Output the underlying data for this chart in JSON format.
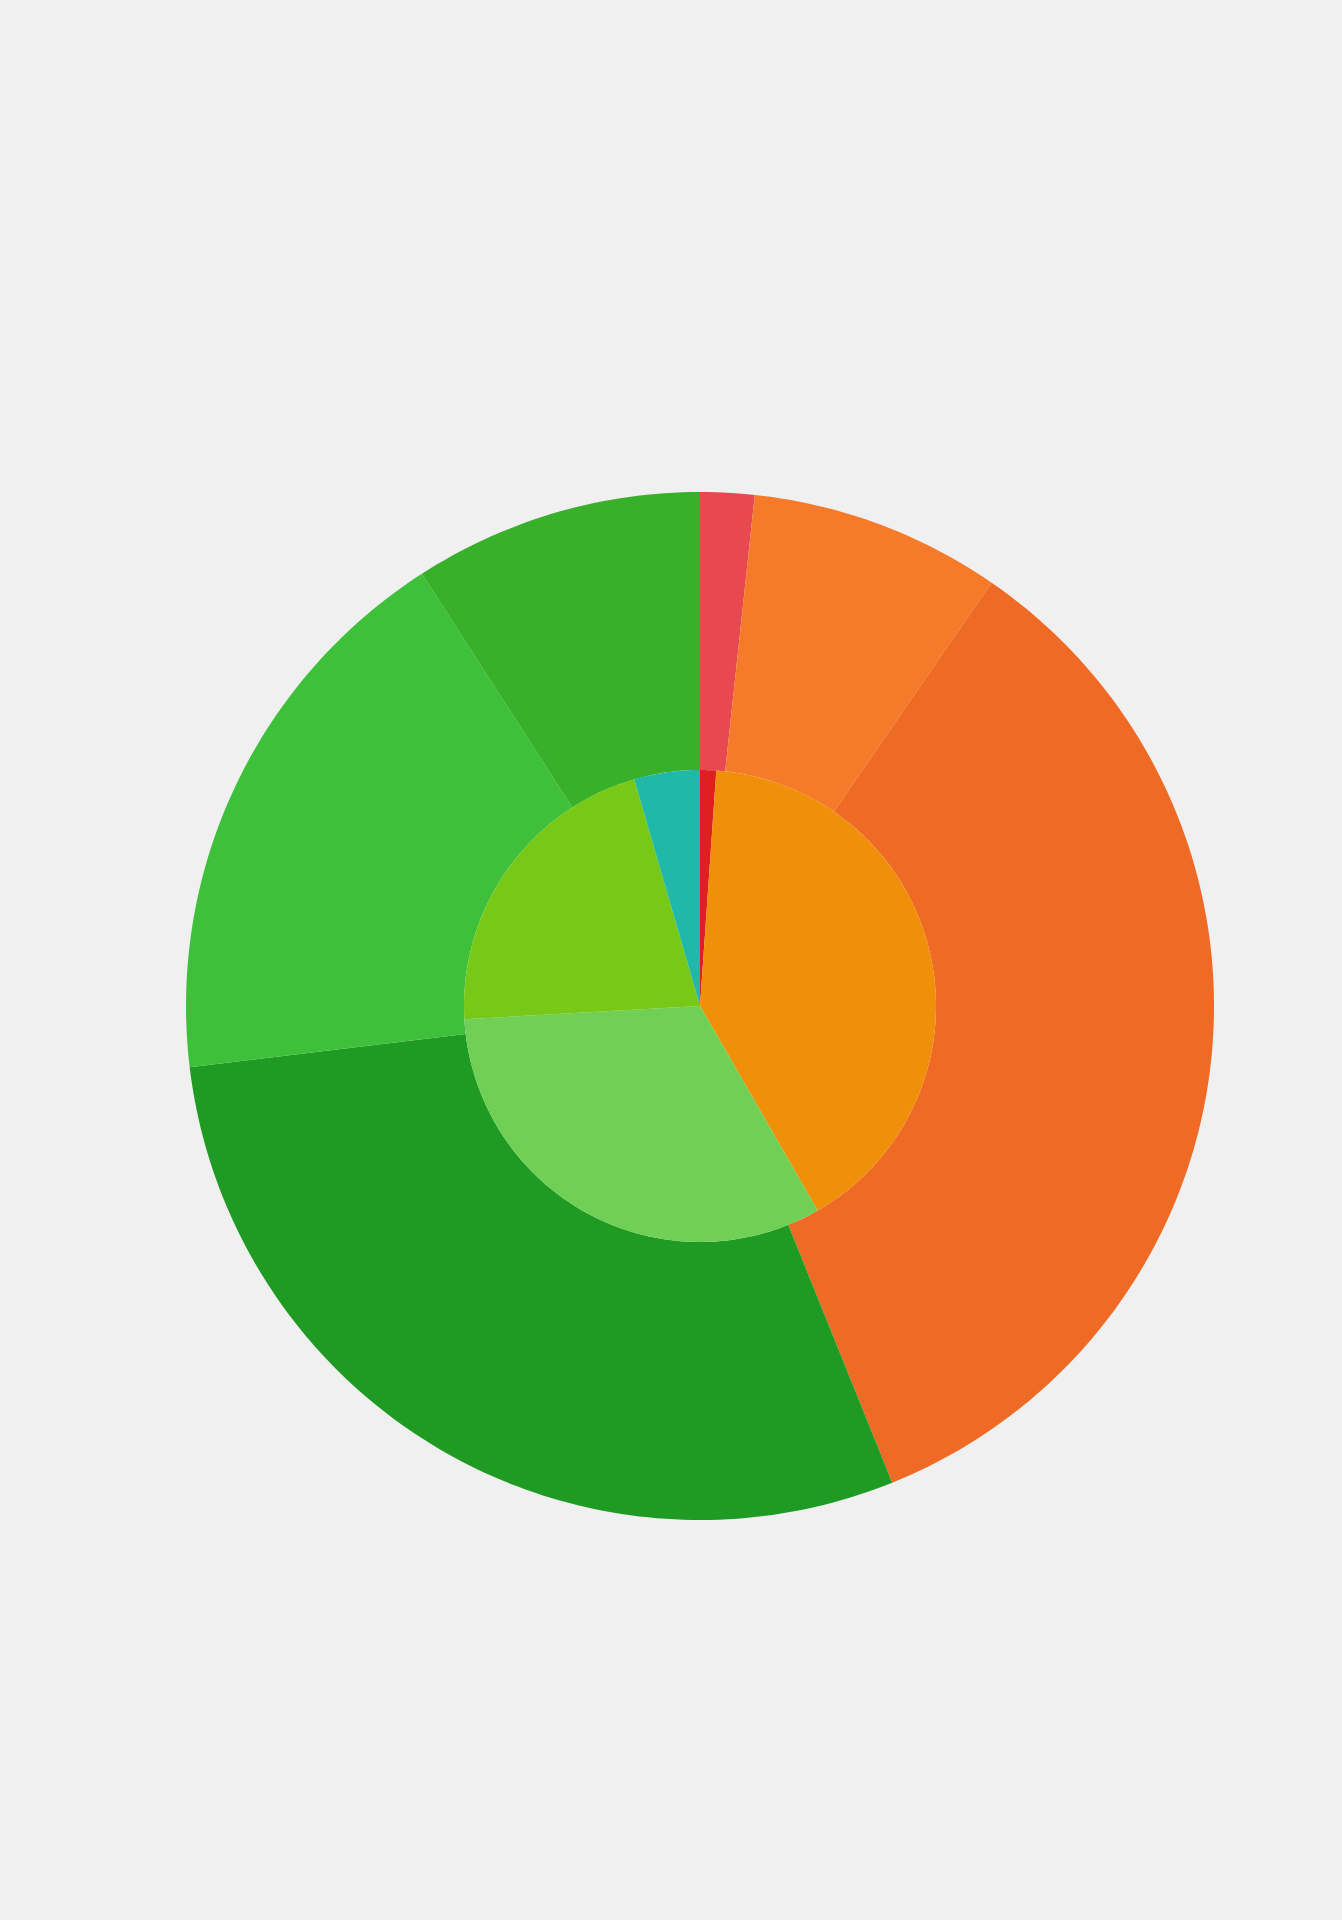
{
  "chart_data": [
    {
      "type": "donut",
      "categories": [
        null,
        null,
        null,
        null,
        null,
        null
      ],
      "values": [
        1.7,
        7.9,
        34.3,
        29.2,
        17.8,
        9.1
      ],
      "colors": [
        "#e84850",
        "#f57a2a",
        "#ef6a25",
        "#1f9a22",
        "#3fc03a",
        "#38b02a"
      ]
    },
    {
      "type": "pie",
      "categories": [
        null,
        null,
        null,
        null,
        null
      ],
      "values": [
        1.1,
        40.6,
        32.4,
        21.4,
        4.5
      ],
      "colors": [
        "#e02020",
        "#f0900a",
        "#70d055",
        "#78c818",
        "#20b8a8"
      ]
    }
  ]
}
